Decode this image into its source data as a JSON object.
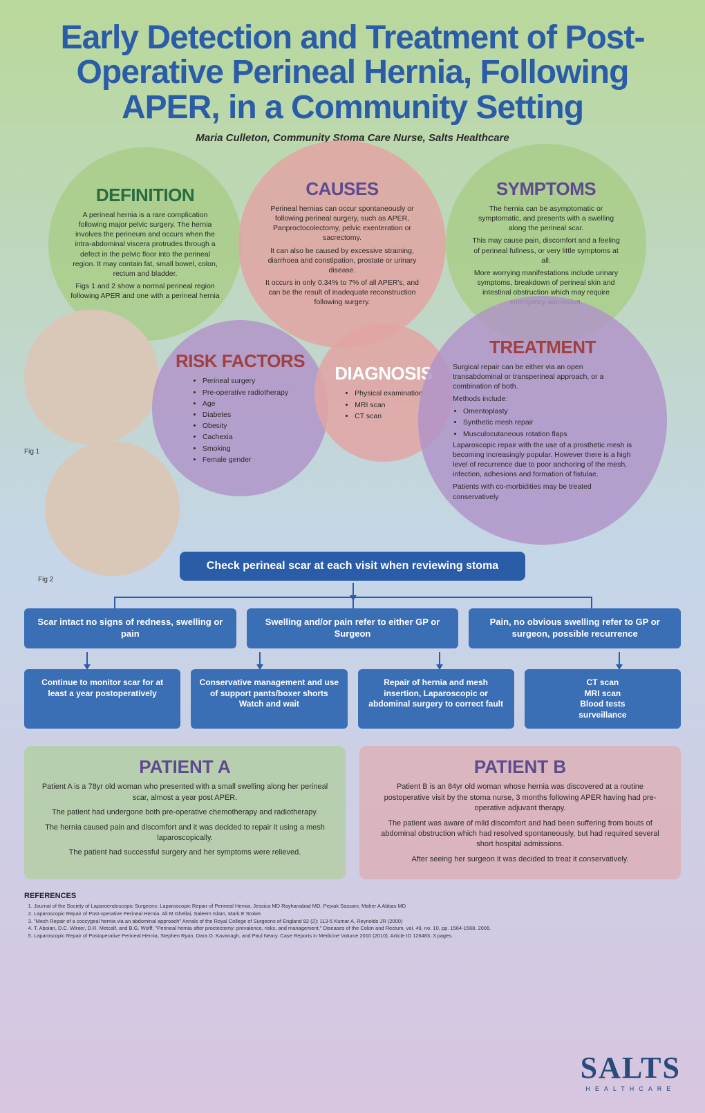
{
  "title": "Early Detection and Treatment of Post-Operative Perineal Hernia, Following APER, in a Community Setting",
  "author": "Maria Culleton, Community Stoma Care Nurse, Salts Healthcare",
  "sections": {
    "definition": {
      "heading": "DEFINITION",
      "p1": "A perineal hernia is a rare complication following major pelvic surgery. The hernia involves the perineum and occurs when the intra-abdominal viscera protrudes through a defect in the pelvic floor into the perineal region. It may contain fat, small bowel, colon, rectum and bladder.",
      "p2": "Figs 1 and 2 show a normal perineal region following APER and one with a perineal hernia"
    },
    "causes": {
      "heading": "CAUSES",
      "p1": "Perineal hernias can occur spontaneously or following perineal surgery, such as APER, Panproctocolectomy, pelvic exenteration or sacrectomy.",
      "p2": "It can also be caused by excessive straining, diarrhoea and constipation, prostate or urinary disease.",
      "p3": "It occurs in only 0.34% to 7% of all APER's, and can be the result of inadequate reconstruction following surgery."
    },
    "symptoms": {
      "heading": "SYMPTOMS",
      "p1": "The hernia can be asymptomatic or symptomatic, and presents with a swelling along the perineal scar.",
      "p2": "This may cause pain, discomfort and a feeling of perineal fullness, or very little symptoms at all.",
      "p3": "More worrying manifestations include urinary symptoms, breakdown of perineal skin and intestinal obstruction which may require emergency admission."
    },
    "risk_factors": {
      "heading": "RISK FACTORS",
      "items": [
        "Perineal surgery",
        "Pre-operative radiotherapy",
        "Age",
        "Diabetes",
        "Obesity",
        "Cachexia",
        "Smoking",
        "Female gender"
      ]
    },
    "diagnosis": {
      "heading": "DIAGNOSIS",
      "items": [
        "Physical examination",
        "MRI scan",
        "CT scan"
      ]
    },
    "treatment": {
      "heading": "TREATMENT",
      "p1": "Surgical repair can be either via an open transabdominal or transperineal approach, or a combination of both.",
      "methods_label": "Methods include:",
      "items": [
        "Omentoplasty",
        "Synthetic mesh repair",
        "Musculocutaneous rotation flaps"
      ],
      "p2": "Laparoscopic repair with the use of a prosthetic mesh is becoming increasingly popular. However there is a high level of recurrence due to poor anchoring of the mesh, infection, adhesions and formation of fistulae.",
      "p3": "Patients with co-morbidities may be treated conservatively"
    }
  },
  "fig_labels": {
    "fig1": "Fig 1",
    "fig2": "Fig 2"
  },
  "flow": {
    "start": "Check perineal scar at each visit when reviewing stoma",
    "row1": {
      "a": "Scar intact no signs of redness, swelling or pain",
      "b": "Swelling and/or pain refer to either GP or Surgeon",
      "c": "Pain, no obvious swelling refer to GP or surgeon, possible recurrence"
    },
    "row2": {
      "a": "Continue to monitor scar for at least a year postoperatively",
      "b": "Conservative management and use of support pants/boxer shorts\nWatch and wait",
      "c": "Repair of hernia and mesh insertion, Laparoscopic or abdominal surgery to correct fault",
      "d": "CT scan\nMRI scan\nBlood tests\nsurveillance"
    }
  },
  "patients": {
    "a": {
      "heading": "PATIENT A",
      "p1": "Patient A is a 78yr old woman who presented with a small swelling along her perineal scar, almost a year post APER.",
      "p2": "The patient had undergone both pre-operative chemotherapy and radiotherapy.",
      "p3": "The hernia caused pain and discomfort and it was decided to repair it using a mesh laparoscopically.",
      "p4": "The patient had successful surgery and her symptoms were relieved."
    },
    "b": {
      "heading": "PATIENT B",
      "p1": "Patient B is an 84yr old woman whose hernia was discovered at a routine postoperative visit by the stoma nurse, 3 months following APER having had pre-operative adjuvant therapy.",
      "p2": "The patient was aware of mild discomfort and had been suffering from bouts of abdominal obstruction which had resolved spontaneously, but had required several short hospital admissions.",
      "p3": "After seeing her surgeon it was decided to treat it conservatively."
    }
  },
  "references": {
    "heading": "REFERENCES",
    "items": [
      "Journal of the Society of Laparoendoscopic Surgeons: Laparoscopic Repair of Perineal Hernia. Jessica MD Rayhanabad MD, Pejvak Sassani, Maher A Abbas MD",
      "Laparoscopic Repair of Post-operative Perineal Hernia. Ali M Ghellai, Saleem Islam, Mark E Stoker.",
      "\"Mesh Repair of a coccygeal hernia via an abdominal approach\" Annals of the Royal College of Surgeons of England 82 (2): 113-5 Kumar A, Reynolds JR (2000)",
      "T. Aboian, D.C. Winter, D.R. Metcalf, and B.G. Wolff, \"Perineal hernia after proctectomy: prevalence, risks, and management,\" Diseases of the Colon and Rectum, vol. 49, no. 10, pp. 1564-1568, 2006.",
      "Laparoscopic Repair of Postoperative Perineal Hernia, Stephen Ryan, Dara O. Kavanagh, and Paul Neary. Case Reports in Medicine Volume 2010 (2010), Article ID 126483, 3 pages."
    ]
  },
  "logo": {
    "main": "SALTS",
    "sub": "HEALTHCARE"
  },
  "colors": {
    "title": "#2a5ca8",
    "flow_box": "#3b6fb5",
    "flow_start": "#2a5ca8",
    "h_green": "#2a6b3f",
    "h_purple": "#5e4a8f",
    "h_red": "#a04040",
    "c_green": "rgba(169,206,138,0.85)",
    "c_red": "rgba(226,165,163,0.85)",
    "c_purple": "rgba(176,146,200,0.82)"
  }
}
